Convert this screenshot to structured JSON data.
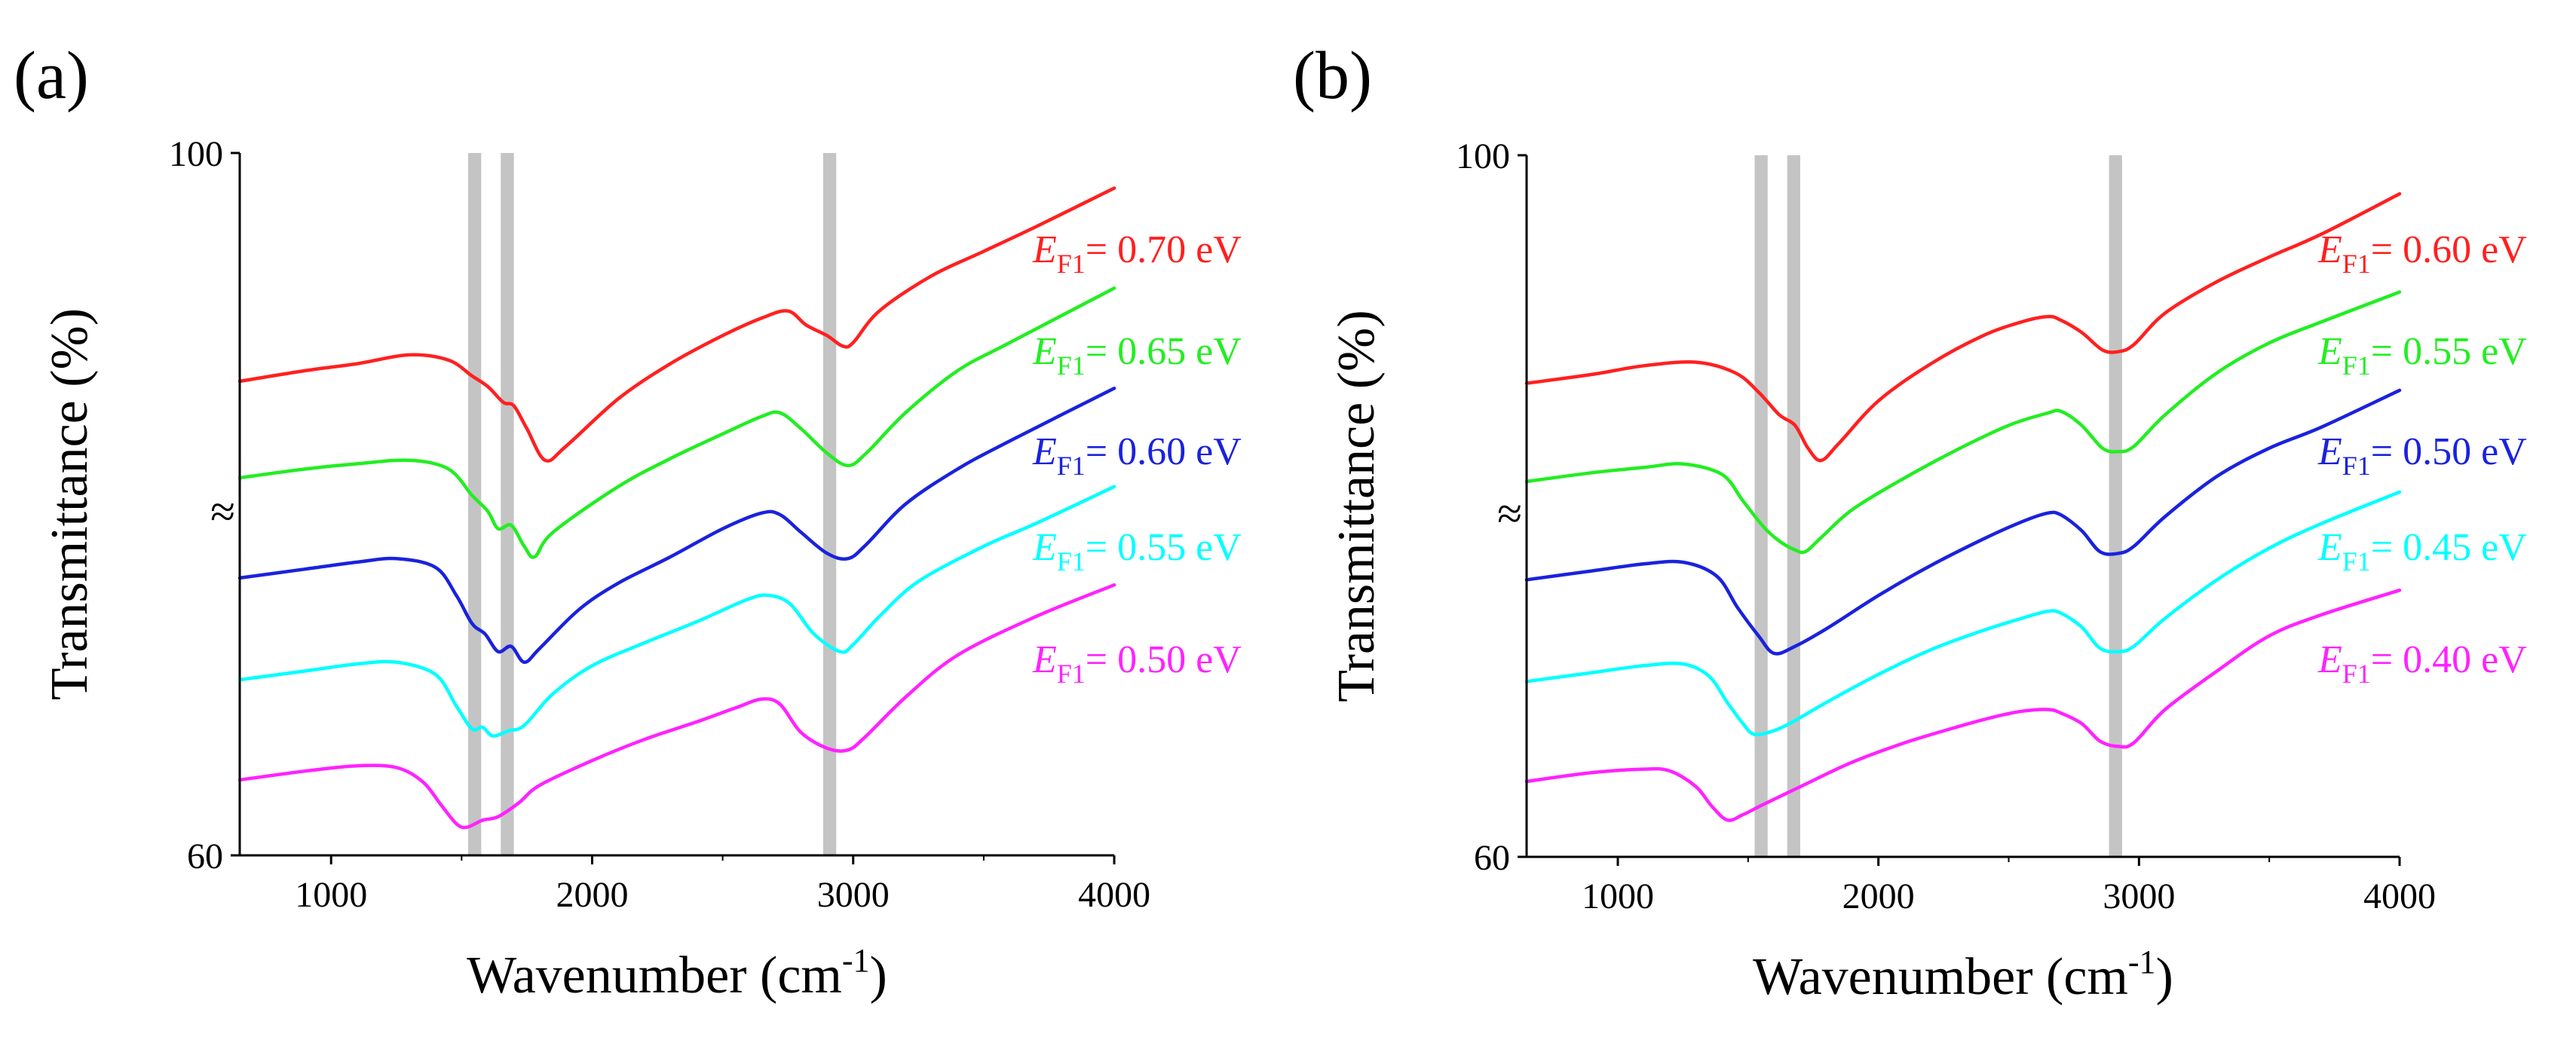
{
  "colors": {
    "red": "#ff2020",
    "green": "#22ee22",
    "blue": "#1a22dd",
    "cyan": "#00ffff",
    "magenta": "#ff22ff",
    "band": "#c4c4c4",
    "axis": "#000000"
  },
  "chart_data": [
    {
      "type": "line",
      "panel_label": "(a)",
      "xlabel_main": "Wavenumber (cm",
      "xlabel_sup": "-1",
      "xlabel_close": ")",
      "ylabel": "Transmittance (%)",
      "ymin_label": "60",
      "ymax_label": "100",
      "axis_break_symbol": "≈",
      "xlim": [
        650,
        4000
      ],
      "ylim": [
        60,
        100
      ],
      "xticks": [
        1000,
        2000,
        3000,
        4000
      ],
      "highlight_bands": [
        [
          1525,
          1575
        ],
        [
          1650,
          1700
        ],
        [
          2885,
          2935
        ]
      ],
      "series": [
        {
          "name": "E_F1 = 0.70 eV",
          "E": "E",
          "sub": "F1",
          "value": "= 0.70 eV",
          "color": "red",
          "x": [
            650,
            900,
            1100,
            1300,
            1450,
            1540,
            1600,
            1660,
            1700,
            1750,
            1820,
            1900,
            2100,
            2300,
            2500,
            2650,
            2750,
            2820,
            2900,
            2960,
            3000,
            3100,
            3300,
            3500,
            3700,
            4000
          ],
          "y": [
            87.0,
            87.6,
            88.0,
            88.5,
            88.2,
            87.3,
            86.7,
            85.8,
            85.6,
            84.3,
            82.5,
            83.3,
            86.0,
            88.0,
            89.6,
            90.6,
            91.0,
            90.2,
            89.6,
            89.0,
            89.2,
            91.0,
            93.0,
            94.4,
            95.8,
            98.0
          ]
        },
        {
          "name": "E_F1 = 0.65 eV",
          "E": "E",
          "sub": "F1",
          "value": "= 0.65 eV",
          "color": "green",
          "x": [
            650,
            900,
            1100,
            1300,
            1450,
            1540,
            1600,
            1640,
            1690,
            1740,
            1780,
            1850,
            2100,
            2300,
            2500,
            2650,
            2720,
            2800,
            2900,
            2980,
            3050,
            3200,
            3400,
            3600,
            4000
          ],
          "y": [
            81.5,
            82.0,
            82.3,
            82.5,
            82.0,
            80.5,
            79.6,
            78.6,
            78.8,
            77.6,
            77.0,
            78.4,
            81.0,
            82.6,
            84.0,
            85.0,
            85.2,
            84.3,
            82.9,
            82.2,
            82.9,
            85.2,
            87.6,
            89.2,
            92.3
          ]
        },
        {
          "name": "E_F1 = 0.60 eV",
          "E": "E",
          "sub": "F1",
          "value": "= 0.60 eV",
          "color": "blue",
          "x": [
            650,
            900,
            1100,
            1250,
            1400,
            1480,
            1540,
            1590,
            1640,
            1690,
            1740,
            1800,
            1950,
            2100,
            2300,
            2500,
            2650,
            2720,
            2800,
            2900,
            2980,
            3050,
            3200,
            3400,
            3600,
            4000
          ],
          "y": [
            75.8,
            76.3,
            76.7,
            76.9,
            76.4,
            74.8,
            73.2,
            72.6,
            71.6,
            71.9,
            71.0,
            71.8,
            74.0,
            75.5,
            77.0,
            78.6,
            79.5,
            79.4,
            78.4,
            77.2,
            76.9,
            77.7,
            80.0,
            82.0,
            83.6,
            86.6
          ]
        },
        {
          "name": "E_F1 = 0.55 eV",
          "E": "E",
          "sub": "F1",
          "value": "= 0.55 eV",
          "color": "cyan",
          "x": [
            650,
            900,
            1100,
            1250,
            1400,
            1480,
            1540,
            1580,
            1620,
            1680,
            1740,
            1850,
            2000,
            2200,
            2400,
            2600,
            2680,
            2760,
            2850,
            2950,
            3000,
            3100,
            3250,
            3500,
            3700,
            4000
          ],
          "y": [
            70.0,
            70.5,
            70.9,
            71.0,
            70.3,
            68.5,
            67.2,
            67.3,
            66.8,
            67.1,
            67.4,
            69.2,
            70.8,
            72.1,
            73.3,
            74.6,
            74.8,
            74.3,
            72.6,
            71.6,
            72.0,
            73.6,
            75.6,
            77.6,
            78.9,
            81.0
          ]
        },
        {
          "name": "E_F1 = 0.50 eV",
          "E": "E",
          "sub": "F1",
          "value": "= 0.50 eV",
          "color": "magenta",
          "x": [
            650,
            900,
            1100,
            1250,
            1350,
            1420,
            1480,
            1520,
            1580,
            1640,
            1720,
            1800,
            2000,
            2200,
            2400,
            2550,
            2650,
            2720,
            2800,
            2900,
            2980,
            3050,
            3200,
            3400,
            3700,
            4000
          ],
          "y": [
            64.3,
            64.8,
            65.1,
            65.0,
            64.2,
            62.9,
            61.8,
            61.6,
            62.0,
            62.2,
            63.0,
            64.0,
            65.4,
            66.6,
            67.6,
            68.4,
            68.9,
            68.6,
            67.0,
            66.1,
            66.0,
            66.8,
            69.0,
            71.4,
            73.6,
            75.4
          ]
        }
      ]
    },
    {
      "type": "line",
      "panel_label": "(b)",
      "xlabel_main": "Wavenumber (cm",
      "xlabel_sup": "-1",
      "xlabel_close": ")",
      "ylabel": "Transmittance (%)",
      "ymin_label": "60",
      "ymax_label": "100",
      "axis_break_symbol": "≈",
      "xlim": [
        650,
        4000
      ],
      "ylim": [
        60,
        100
      ],
      "xticks": [
        1000,
        2000,
        3000,
        4000
      ],
      "highlight_bands": [
        [
          1525,
          1575
        ],
        [
          1650,
          1700
        ],
        [
          2885,
          2935
        ]
      ],
      "series": [
        {
          "name": "E_F1 = 0.60 eV",
          "E": "E",
          "sub": "F1",
          "value": "= 0.60 eV",
          "color": "red",
          "x": [
            650,
            900,
            1100,
            1300,
            1450,
            1540,
            1620,
            1680,
            1730,
            1780,
            1850,
            2000,
            2200,
            2400,
            2550,
            2650,
            2700,
            2780,
            2860,
            2920,
            2980,
            3100,
            3300,
            3500,
            3700,
            4000
          ],
          "y": [
            87.0,
            87.5,
            88.0,
            88.2,
            87.6,
            86.5,
            85.2,
            84.6,
            83.3,
            82.6,
            83.6,
            86.0,
            88.1,
            89.7,
            90.5,
            90.8,
            90.6,
            89.9,
            88.9,
            88.8,
            89.2,
            91.0,
            92.8,
            94.2,
            95.5,
            97.8
          ]
        },
        {
          "name": "E_F1 = 0.55 eV",
          "E": "E",
          "sub": "F1",
          "value": "= 0.55 eV",
          "color": "green",
          "x": [
            650,
            900,
            1100,
            1250,
            1400,
            1480,
            1560,
            1620,
            1680,
            1720,
            1780,
            1900,
            2100,
            2300,
            2500,
            2650,
            2700,
            2780,
            2860,
            2920,
            2980,
            3100,
            3300,
            3500,
            3700,
            4000
          ],
          "y": [
            81.4,
            81.9,
            82.2,
            82.4,
            81.8,
            80.3,
            78.8,
            78.0,
            77.5,
            77.4,
            78.2,
            79.8,
            81.6,
            83.2,
            84.6,
            85.3,
            85.4,
            84.6,
            83.3,
            83.1,
            83.4,
            85.2,
            87.6,
            89.3,
            90.5,
            92.2
          ]
        },
        {
          "name": "E_F1 = 0.50 eV",
          "E": "E",
          "sub": "F1",
          "value": "= 0.50 eV",
          "color": "blue",
          "x": [
            650,
            900,
            1100,
            1250,
            1380,
            1460,
            1540,
            1600,
            1680,
            1800,
            2000,
            2200,
            2400,
            2550,
            2650,
            2700,
            2780,
            2850,
            2920,
            2980,
            3100,
            3300,
            3500,
            3700,
            4000
          ],
          "y": [
            75.8,
            76.3,
            76.7,
            76.8,
            76.0,
            74.2,
            72.6,
            71.6,
            72.0,
            73.0,
            74.9,
            76.6,
            78.1,
            79.1,
            79.6,
            79.5,
            78.6,
            77.4,
            77.3,
            77.7,
            79.4,
            81.7,
            83.3,
            84.5,
            86.6
          ]
        },
        {
          "name": "E_F1 = 0.45 eV",
          "E": "E",
          "sub": "F1",
          "value": "= 0.45 eV",
          "color": "cyan",
          "x": [
            650,
            900,
            1100,
            1250,
            1350,
            1420,
            1480,
            1520,
            1580,
            1660,
            1800,
            2000,
            2200,
            2400,
            2550,
            2650,
            2700,
            2780,
            2850,
            2920,
            2980,
            3100,
            3300,
            3500,
            3700,
            4000
          ],
          "y": [
            70.0,
            70.5,
            70.9,
            71.0,
            70.3,
            68.8,
            67.6,
            67.0,
            67.1,
            67.6,
            68.8,
            70.4,
            71.8,
            72.9,
            73.6,
            74.0,
            73.9,
            73.1,
            71.9,
            71.7,
            72.0,
            73.6,
            75.8,
            77.6,
            79.0,
            80.8
          ]
        },
        {
          "name": "E_F1 = 0.40 eV",
          "E": "E",
          "sub": "F1",
          "value": "= 0.40 eV",
          "color": "magenta",
          "x": [
            650,
            900,
            1100,
            1200,
            1300,
            1360,
            1420,
            1480,
            1560,
            1700,
            1900,
            2100,
            2300,
            2450,
            2550,
            2650,
            2700,
            2780,
            2850,
            2920,
            2980,
            3100,
            3300,
            3500,
            3700,
            4000
          ],
          "y": [
            64.3,
            64.8,
            65.0,
            64.9,
            64.0,
            62.9,
            62.1,
            62.4,
            63.0,
            64.0,
            65.4,
            66.5,
            67.4,
            68.0,
            68.3,
            68.4,
            68.2,
            67.6,
            66.6,
            66.3,
            66.5,
            68.4,
            70.6,
            72.6,
            73.8,
            75.2
          ]
        }
      ]
    }
  ]
}
